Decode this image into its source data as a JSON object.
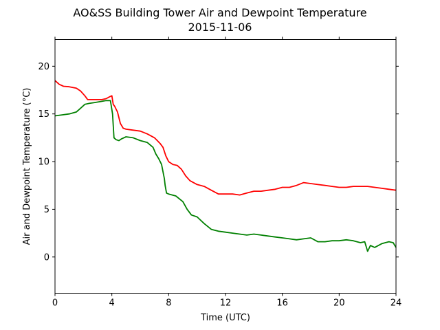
{
  "chart_data": {
    "type": "line",
    "title": "AO&SS Building Tower Air and Dewpoint Temperature",
    "subtitle": "2015-11-06",
    "xlabel": "Time (UTC)",
    "ylabel": "Air and Dewpoint Temperature (°C)",
    "xlim": [
      0,
      24
    ],
    "ylim": [
      -3.8,
      22.8
    ],
    "xticks": [
      0,
      4,
      8,
      12,
      16,
      20,
      24
    ],
    "yticks": [
      0,
      5,
      10,
      15,
      20
    ],
    "grid": false,
    "series": [
      {
        "color": "#ff0000",
        "x": [
          0,
          0.3,
          0.6,
          1.0,
          1.5,
          1.8,
          2.1,
          2.3,
          2.6,
          3.0,
          3.3,
          3.6,
          3.85,
          4.0,
          4.1,
          4.2,
          4.4,
          4.6,
          4.8,
          5.0,
          5.5,
          6.0,
          6.5,
          7.0,
          7.2,
          7.4,
          7.6,
          7.8,
          8.0,
          8.3,
          8.6,
          8.9,
          9.2,
          9.5,
          10.0,
          10.5,
          11.0,
          11.5,
          12.0,
          12.5,
          13.0,
          13.5,
          14.0,
          14.5,
          15.0,
          15.5,
          16.0,
          16.5,
          17.0,
          17.5,
          18.0,
          18.5,
          19.0,
          19.5,
          20.0,
          20.5,
          21.0,
          21.5,
          22.0,
          22.5,
          23.0,
          23.5,
          24.0
        ],
        "y": [
          18.5,
          18.1,
          17.9,
          17.85,
          17.7,
          17.4,
          16.9,
          16.5,
          16.5,
          16.5,
          16.5,
          16.6,
          16.8,
          16.9,
          16.0,
          15.8,
          15.2,
          14.0,
          13.5,
          13.4,
          13.3,
          13.2,
          12.9,
          12.5,
          12.2,
          11.9,
          11.5,
          10.6,
          10.0,
          9.7,
          9.6,
          9.2,
          8.5,
          8.0,
          7.6,
          7.4,
          7.0,
          6.6,
          6.6,
          6.6,
          6.5,
          6.7,
          6.9,
          6.9,
          7.0,
          7.1,
          7.3,
          7.3,
          7.5,
          7.8,
          7.7,
          7.6,
          7.5,
          7.4,
          7.3,
          7.3,
          7.4,
          7.4,
          7.4,
          7.3,
          7.2,
          7.1,
          7.0
        ]
      },
      {
        "color": "#008000",
        "x": [
          0,
          0.5,
          1.0,
          1.5,
          1.8,
          2.1,
          2.4,
          2.8,
          3.2,
          3.6,
          3.9,
          4.05,
          4.15,
          4.3,
          4.5,
          4.7,
          5.0,
          5.5,
          6.0,
          6.5,
          6.9,
          7.1,
          7.3,
          7.5,
          7.7,
          7.75,
          7.85,
          8.0,
          8.5,
          9.0,
          9.3,
          9.6,
          10.0,
          10.5,
          11.0,
          11.5,
          12.0,
          12.5,
          13.0,
          13.5,
          14.0,
          14.5,
          15.0,
          15.5,
          16.0,
          16.5,
          17.0,
          17.5,
          18.0,
          18.5,
          19.0,
          19.5,
          20.0,
          20.5,
          21.0,
          21.5,
          21.8,
          22.0,
          22.2,
          22.5,
          23.0,
          23.5,
          23.8,
          24.0
        ],
        "y": [
          14.8,
          14.9,
          15.0,
          15.2,
          15.6,
          16.0,
          16.1,
          16.2,
          16.3,
          16.4,
          16.4,
          15.0,
          12.5,
          12.3,
          12.2,
          12.4,
          12.6,
          12.5,
          12.2,
          12.0,
          11.5,
          10.8,
          10.3,
          9.7,
          8.2,
          7.5,
          6.7,
          6.6,
          6.4,
          5.8,
          5.0,
          4.4,
          4.2,
          3.5,
          2.9,
          2.7,
          2.6,
          2.5,
          2.4,
          2.3,
          2.4,
          2.3,
          2.2,
          2.1,
          2.0,
          1.9,
          1.8,
          1.9,
          2.0,
          1.6,
          1.6,
          1.7,
          1.7,
          1.8,
          1.7,
          1.5,
          1.6,
          0.6,
          1.2,
          1.0,
          1.4,
          1.6,
          1.5,
          1.0
        ]
      }
    ]
  }
}
